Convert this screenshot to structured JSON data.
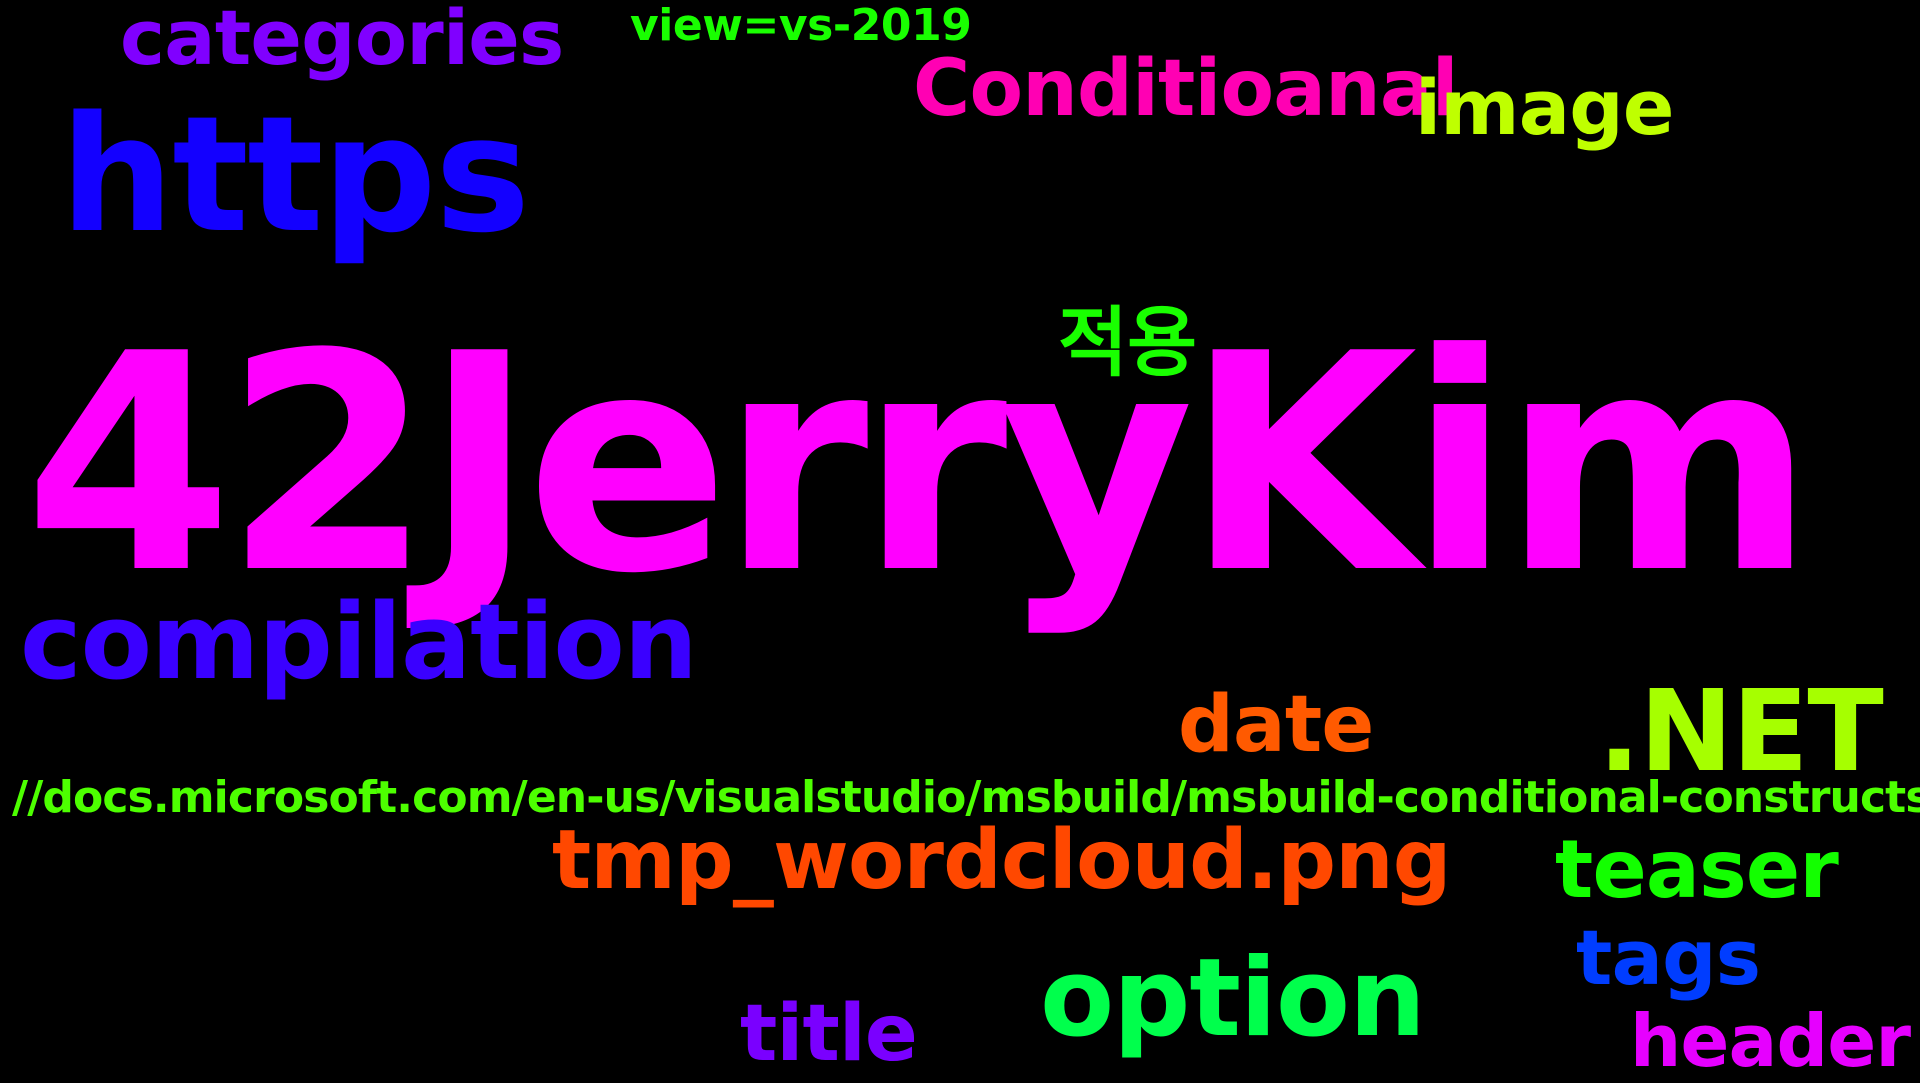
{
  "background_color": "#000000",
  "words": {
    "jerrykim": {
      "text": "42JerryKim",
      "color": "#ff00ff"
    },
    "https": {
      "text": "https",
      "color": "#1300ff"
    },
    "compilation": {
      "text": "compilation",
      "color": "#3a00ff"
    },
    "option": {
      "text": "option",
      "color": "#00ff4c"
    },
    "dotnet": {
      "text": ".NET",
      "color": "#a6ff00"
    },
    "tmp": {
      "text": "tmp_wordcloud.png",
      "color": "#ff4800"
    },
    "conditioanal": {
      "text": "Conditioanal",
      "color": "#ff00b3"
    },
    "date": {
      "text": "date",
      "color": "#ff5a00"
    },
    "teaser": {
      "text": "teaser",
      "color": "#13ff00"
    },
    "image": {
      "text": "image",
      "color": "#bfff00"
    },
    "categories": {
      "text": "categories",
      "color": "#8000ff"
    },
    "tags": {
      "text": "tags",
      "color": "#003dff"
    },
    "title": {
      "text": "title",
      "color": "#7a00ff"
    },
    "header": {
      "text": "header",
      "color": "#e600ff"
    },
    "jeok": {
      "text": "적용",
      "color": "#19ff00"
    },
    "view": {
      "text": "view=vs-2019",
      "color": "#19ff00"
    },
    "url": {
      "text": "//docs.microsoft.com/en-us/visualstudio/msbuild/msbuild-conditional-constructs",
      "color": "#4dff00"
    }
  }
}
